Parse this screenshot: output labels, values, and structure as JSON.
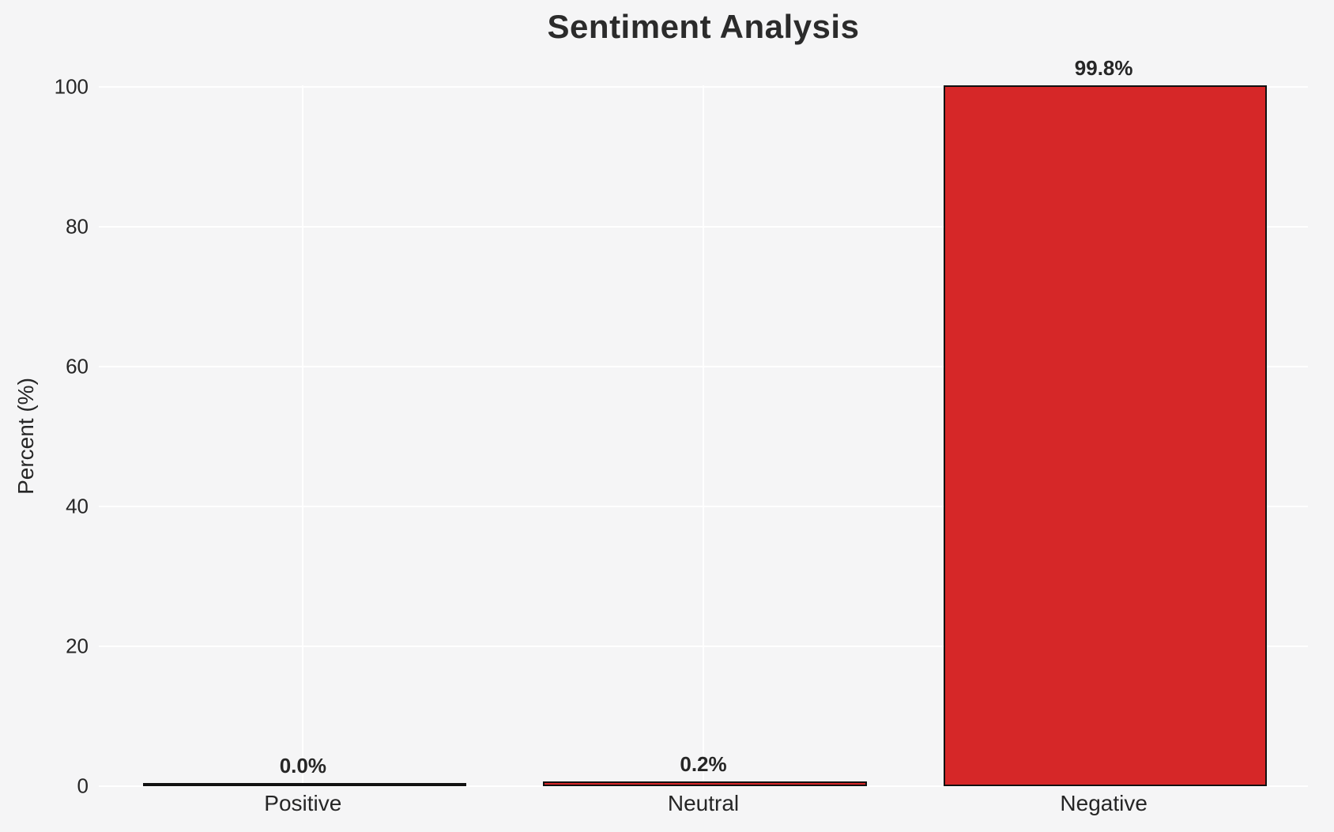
{
  "chart_data": {
    "type": "bar",
    "title": "Sentiment Analysis",
    "xlabel": "",
    "ylabel": "Percent (%)",
    "categories": [
      "Positive",
      "Neutral",
      "Negative"
    ],
    "values": [
      0.0,
      0.2,
      99.8
    ],
    "value_labels": [
      "0.0%",
      "0.2%",
      "99.8%"
    ],
    "yticks": [
      0,
      20,
      40,
      60,
      80,
      100
    ],
    "ylim": [
      0,
      100
    ],
    "bar_width_fraction": 0.8,
    "grid": "on",
    "gridline_orientation": "horizontal-and-vertical",
    "legend": "none",
    "colors": {
      "background": "#f5f5f6",
      "gridline": "#ffffff",
      "bar_fill": "#d62728",
      "bar_edge": "#111111",
      "text": "#262626"
    }
  }
}
